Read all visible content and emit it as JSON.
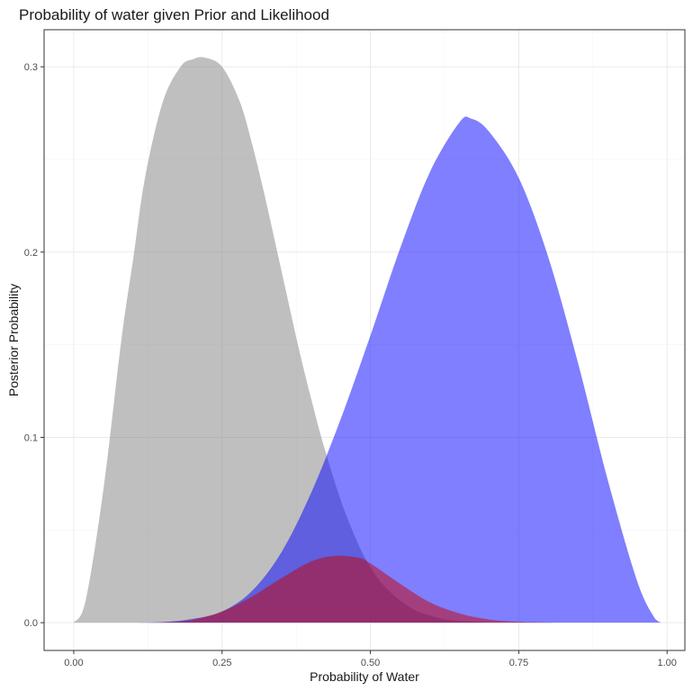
{
  "chart_data": {
    "type": "area",
    "title": "Probability of water given Prior and Likelihood",
    "xlabel": "Probability of Water",
    "ylabel": "Posterior Probability",
    "xlim": [
      -0.05,
      1.03
    ],
    "ylim": [
      -0.015,
      0.32
    ],
    "x_ticks": [
      0.0,
      0.25,
      0.5,
      0.75,
      1.0
    ],
    "x_tick_labels": [
      "0.00",
      "0.25",
      "0.50",
      "0.75",
      "1.00"
    ],
    "y_ticks": [
      0.0,
      0.1,
      0.2,
      0.3
    ],
    "y_tick_labels": [
      "0.0",
      "0.1",
      "0.2",
      "0.3"
    ],
    "grid": true,
    "series": [
      {
        "color": "#808080",
        "x": [
          0.0,
          0.02,
          0.05,
          0.08,
          0.1,
          0.12,
          0.15,
          0.18,
          0.2,
          0.22,
          0.25,
          0.28,
          0.3,
          0.32,
          0.35,
          0.38,
          0.4,
          0.42,
          0.45,
          0.48,
          0.5,
          0.52,
          0.55,
          0.58,
          0.6,
          0.62,
          0.65,
          0.68,
          0.7,
          0.72,
          0.75
        ],
        "y": [
          0.0,
          0.012,
          0.072,
          0.152,
          0.196,
          0.24,
          0.281,
          0.3,
          0.304,
          0.305,
          0.3,
          0.281,
          0.259,
          0.233,
          0.19,
          0.147,
          0.121,
          0.097,
          0.066,
          0.042,
          0.03,
          0.021,
          0.012,
          0.006,
          0.004,
          0.002,
          0.001,
          0.0005,
          0.0002,
          0.0001,
          0.0
        ]
      },
      {
        "color": "#0000ff",
        "x": [
          0.1,
          0.15,
          0.2,
          0.25,
          0.3,
          0.35,
          0.4,
          0.45,
          0.5,
          0.55,
          0.6,
          0.65,
          0.67,
          0.7,
          0.75,
          0.8,
          0.85,
          0.9,
          0.95,
          0.98,
          0.99
        ],
        "y": [
          0.0,
          0.0003,
          0.002,
          0.006,
          0.017,
          0.038,
          0.07,
          0.11,
          0.155,
          0.202,
          0.243,
          0.27,
          0.272,
          0.265,
          0.24,
          0.197,
          0.14,
          0.077,
          0.022,
          0.002,
          0.0
        ]
      },
      {
        "color": "#c80000",
        "x": [
          0.1,
          0.15,
          0.2,
          0.25,
          0.3,
          0.35,
          0.4,
          0.44,
          0.48,
          0.5,
          0.55,
          0.6,
          0.65,
          0.7,
          0.75,
          0.8,
          0.84
        ],
        "y": [
          0.0,
          0.0002,
          0.0015,
          0.006,
          0.014,
          0.024,
          0.033,
          0.036,
          0.035,
          0.032,
          0.021,
          0.011,
          0.005,
          0.0017,
          0.0005,
          0.0001,
          0.0
        ]
      }
    ]
  }
}
